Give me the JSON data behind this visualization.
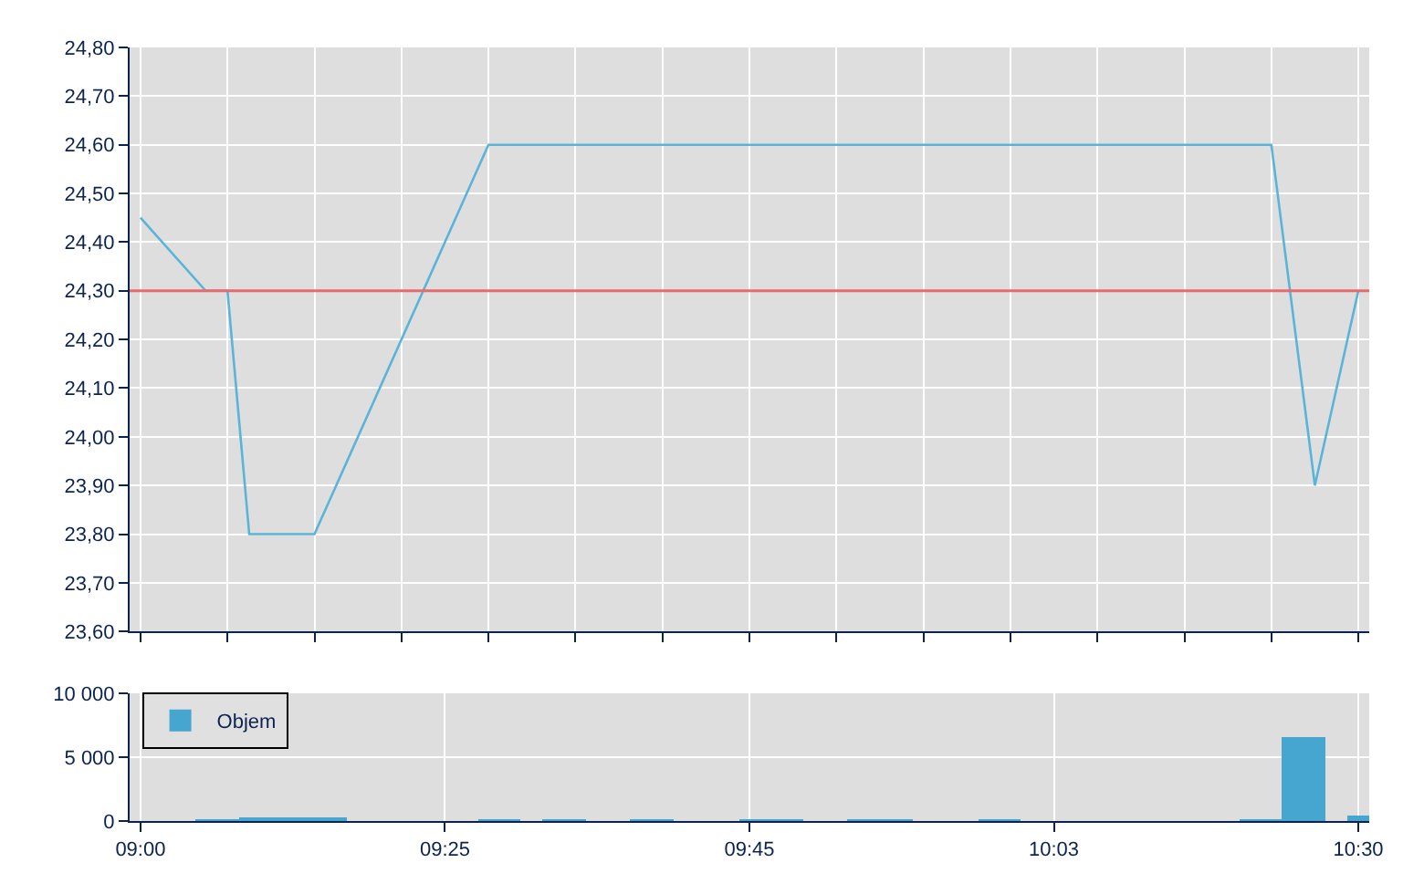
{
  "chart_data": [
    {
      "type": "line",
      "categories": [
        null,
        null,
        null,
        null,
        null,
        null,
        null,
        null,
        null,
        null,
        null,
        null,
        null,
        null,
        null,
        null,
        null,
        null,
        null,
        null,
        null,
        null,
        null,
        null,
        null,
        null,
        null,
        null,
        null,
        null,
        null,
        null,
        null,
        null,
        null,
        null,
        null,
        null,
        null,
        null,
        null,
        null,
        null,
        null,
        null,
        null,
        null,
        null,
        null,
        null,
        null,
        null,
        null,
        null,
        null,
        null,
        null
      ],
      "series": [
        {
          "color": "#5ab4d8",
          "values": [
            24.45,
            null,
            null,
            24.3,
            24.3,
            23.8,
            null,
            null,
            23.8,
            null,
            null,
            null,
            null,
            null,
            null,
            null,
            24.6,
            null,
            null,
            null,
            null,
            null,
            null,
            null,
            null,
            null,
            null,
            null,
            null,
            null,
            null,
            null,
            null,
            null,
            null,
            null,
            null,
            null,
            null,
            null,
            null,
            null,
            null,
            null,
            null,
            null,
            null,
            null,
            null,
            null,
            null,
            null,
            24.6,
            null,
            23.9,
            null,
            24.3
          ]
        }
      ],
      "ylim": [
        23.6,
        24.8
      ],
      "yticks": [
        {
          "value": 23.6,
          "label": "23,60"
        },
        {
          "value": 23.7,
          "label": "23,70"
        },
        {
          "value": 23.8,
          "label": "23,80"
        },
        {
          "value": 23.9,
          "label": "23,90"
        },
        {
          "value": 24.0,
          "label": "24,00"
        },
        {
          "value": 24.1,
          "label": "24,10"
        },
        {
          "value": 24.2,
          "label": "24,20"
        },
        {
          "value": 24.3,
          "label": "24,30"
        },
        {
          "value": 24.4,
          "label": "24,40"
        },
        {
          "value": 24.5,
          "label": "24,50"
        },
        {
          "value": 24.6,
          "label": "24,60"
        },
        {
          "value": 24.7,
          "label": "24,70"
        },
        {
          "value": 24.8,
          "label": "24,80"
        }
      ],
      "ref_lines": [
        {
          "axis": "y",
          "value": 24.3,
          "color": "#e86a6a"
        }
      ],
      "grid": true,
      "tick_labels": "y"
    },
    {
      "type": "bar",
      "categories": [
        "09:00",
        null,
        null,
        null,
        null,
        null,
        null,
        null,
        null,
        null,
        null,
        null,
        null,
        null,
        "09:25",
        null,
        null,
        null,
        null,
        null,
        null,
        null,
        null,
        null,
        null,
        null,
        null,
        null,
        "09:45",
        null,
        null,
        null,
        null,
        null,
        null,
        null,
        null,
        null,
        null,
        null,
        null,
        null,
        "10:03",
        null,
        null,
        null,
        null,
        null,
        null,
        null,
        null,
        null,
        null,
        null,
        null,
        null,
        "10:30"
      ],
      "series": [
        {
          "name": "Objem",
          "color": "#47a6cf",
          "values": [
            0,
            0,
            0,
            100,
            100,
            200,
            200,
            200,
            200,
            200,
            0,
            0,
            0,
            0,
            0,
            0,
            100,
            100,
            0,
            100,
            100,
            0,
            0,
            100,
            100,
            0,
            0,
            0,
            100,
            100,
            100,
            0,
            0,
            100,
            100,
            100,
            0,
            0,
            0,
            100,
            100,
            0,
            0,
            0,
            0,
            0,
            0,
            0,
            0,
            0,
            0,
            100,
            100,
            6500,
            6500,
            0,
            400
          ]
        }
      ],
      "ylim": [
        0,
        10000
      ],
      "yticks": [
        {
          "value": 0,
          "label": "0"
        },
        {
          "value": 5000,
          "label": "5 000"
        },
        {
          "value": 10000,
          "label": "10 000"
        }
      ],
      "grid": true,
      "legend": "top left"
    }
  ]
}
